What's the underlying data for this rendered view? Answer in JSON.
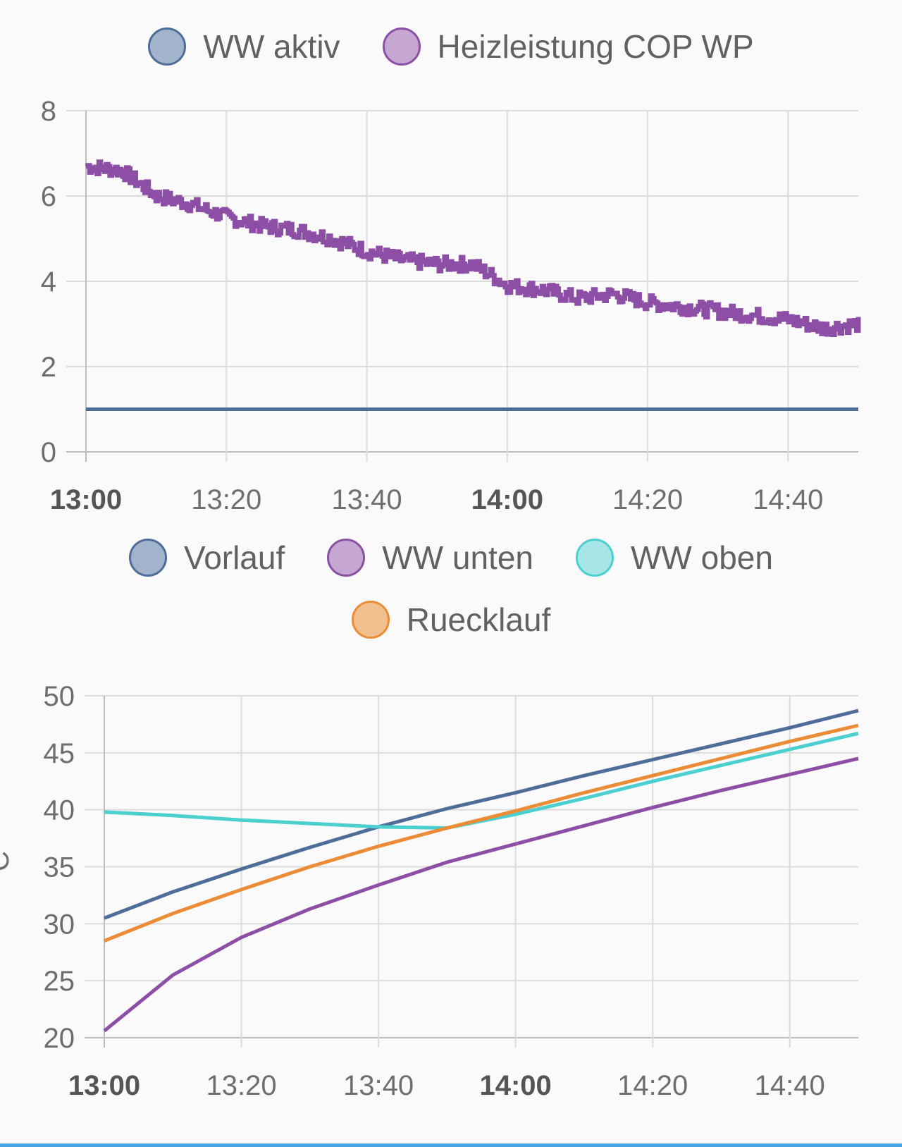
{
  "chart_data": [
    {
      "type": "line",
      "title": "",
      "ylim": [
        0,
        8
      ],
      "y_ticks": [
        "0",
        "2",
        "4",
        "6",
        "8"
      ],
      "x_range": [
        "13:00",
        "14:50"
      ],
      "x_ticks": [
        "13:00",
        "13:20",
        "13:40",
        "14:00",
        "14:20",
        "14:40"
      ],
      "bold_ticks": [
        "13:00",
        "14:00"
      ],
      "grid": true,
      "legend_position": "top",
      "series": [
        {
          "name": "WW aktiv",
          "color": "#4e6d99",
          "fill": "#a2b4cc",
          "x": [
            "13:00",
            "14:50"
          ],
          "values": [
            1,
            1
          ]
        },
        {
          "name": "Heizleistung COP WP",
          "color": "#8c4fa5",
          "fill": "#c5a7d2",
          "noisy": true,
          "x": [
            "13:00",
            "13:05",
            "13:10",
            "13:15",
            "13:20",
            "13:25",
            "13:30",
            "13:35",
            "13:40",
            "13:45",
            "13:50",
            "13:55",
            "14:00",
            "14:05",
            "14:10",
            "14:15",
            "14:20",
            "14:25",
            "14:30",
            "14:35",
            "14:40",
            "14:45",
            "14:50"
          ],
          "values": [
            6.7,
            6.6,
            6.0,
            5.8,
            5.5,
            5.3,
            5.2,
            5.0,
            4.7,
            4.5,
            4.4,
            4.4,
            3.9,
            3.8,
            3.6,
            3.7,
            3.5,
            3.4,
            3.3,
            3.2,
            3.1,
            2.9,
            3.0
          ]
        }
      ]
    },
    {
      "type": "line",
      "title": "",
      "ylabel": "°C",
      "ylim": [
        20,
        50
      ],
      "y_ticks": [
        "20",
        "25",
        "30",
        "35",
        "40",
        "45",
        "50"
      ],
      "x_range": [
        "13:00",
        "14:50"
      ],
      "x_ticks": [
        "13:00",
        "13:20",
        "13:40",
        "14:00",
        "14:20",
        "14:40"
      ],
      "bold_ticks": [
        "13:00",
        "14:00"
      ],
      "grid": true,
      "legend_position": "top",
      "series": [
        {
          "name": "Vorlauf",
          "color": "#4e6d99",
          "fill": "#a2b4cc",
          "x": [
            "13:00",
            "13:10",
            "13:20",
            "13:30",
            "13:40",
            "13:50",
            "14:00",
            "14:10",
            "14:20",
            "14:30",
            "14:40",
            "14:50"
          ],
          "values": [
            30.5,
            32.8,
            34.8,
            36.7,
            38.5,
            40.1,
            41.5,
            43.0,
            44.4,
            45.8,
            47.2,
            48.7
          ]
        },
        {
          "name": "WW unten",
          "color": "#8c4fa5",
          "fill": "#c5a7d2",
          "x": [
            "13:00",
            "13:10",
            "13:20",
            "13:30",
            "13:40",
            "13:50",
            "14:00",
            "14:10",
            "14:20",
            "14:30",
            "14:40",
            "14:50"
          ],
          "values": [
            20.6,
            25.5,
            28.8,
            31.3,
            33.4,
            35.4,
            37.0,
            38.6,
            40.2,
            41.7,
            43.1,
            44.5
          ]
        },
        {
          "name": "WW oben",
          "color": "#4ccfcf",
          "fill": "#a6e6e6",
          "x": [
            "13:00",
            "13:10",
            "13:20",
            "13:30",
            "13:40",
            "13:50",
            "14:00",
            "14:10",
            "14:20",
            "14:30",
            "14:40",
            "14:50"
          ],
          "values": [
            39.8,
            39.5,
            39.1,
            38.8,
            38.5,
            38.4,
            39.6,
            41.0,
            42.5,
            43.9,
            45.3,
            46.7
          ]
        },
        {
          "name": "Ruecklauf",
          "color": "#ec8c37",
          "fill": "#f2c08f",
          "x": [
            "13:00",
            "13:10",
            "13:20",
            "13:30",
            "13:40",
            "13:50",
            "14:00",
            "14:10",
            "14:20",
            "14:30",
            "14:40",
            "14:50"
          ],
          "values": [
            28.5,
            30.9,
            33.0,
            35.0,
            36.8,
            38.4,
            39.9,
            41.5,
            43.0,
            44.5,
            46.0,
            47.4
          ]
        }
      ]
    }
  ]
}
